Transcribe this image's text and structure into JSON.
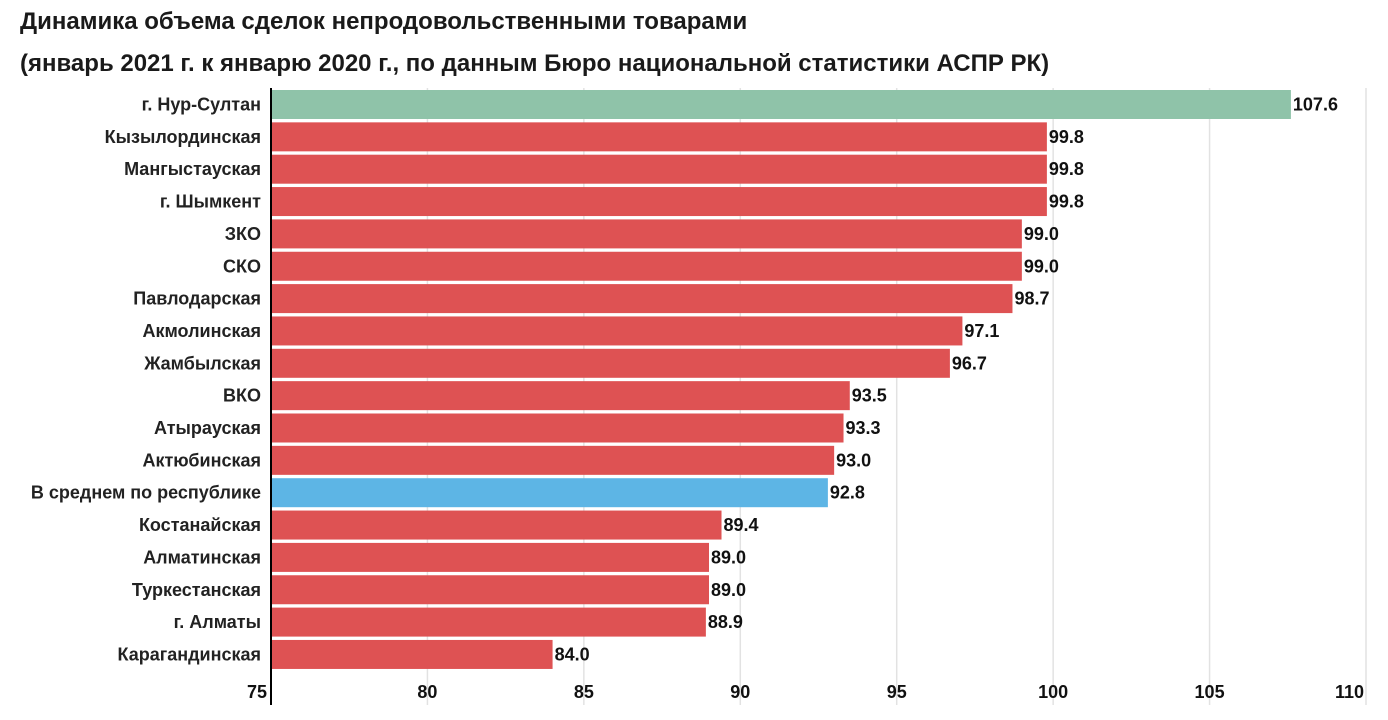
{
  "chart_data": {
    "type": "bar",
    "orientation": "horizontal",
    "title": "Динамика объема сделок непродовольственными товарами",
    "subtitle": "(январь 2021 г. к январю 2020 г., по данным Бюро национальной статистики АСПР РК)",
    "xlabel": "",
    "ylabel": "",
    "xlim": [
      75,
      110
    ],
    "ticks": [
      "75",
      "80",
      "85",
      "90",
      "95",
      "100",
      "105",
      "110"
    ],
    "tick_values": [
      75,
      80,
      85,
      90,
      95,
      100,
      105,
      110
    ],
    "grid": true,
    "categories": [
      "г. Нур-Султан",
      "Кызылординская",
      "Мангыстауская",
      "г. Шымкент",
      "ЗКО",
      "СКО",
      "Павлодарская",
      "Акмолинская",
      "Жамбылская",
      "ВКО",
      "Атырауская",
      "Актюбинская",
      "В среднем по республике",
      "Костанайская",
      "Алматинская",
      "Туркестанская",
      "г. Алматы",
      "Карагандинская"
    ],
    "values": [
      107.6,
      99.8,
      99.8,
      99.8,
      99.0,
      99.0,
      98.7,
      97.1,
      96.7,
      93.5,
      93.3,
      93.0,
      92.8,
      89.4,
      89.0,
      89.0,
      88.9,
      84.0
    ],
    "value_labels": [
      "107.6",
      "99.8",
      "99.8",
      "99.8",
      "99.0",
      "99.0",
      "98.7",
      "97.1",
      "96.7",
      "93.5",
      "93.3",
      "93.0",
      "92.8",
      "89.4",
      "89.0",
      "89.0",
      "88.9",
      "84.0"
    ],
    "colors": {
      "above_100": "#8fc3a9",
      "below_100": "#de5253",
      "average": "#5db5e5",
      "grid": "#e2e2e2",
      "axis": "#000000"
    },
    "bar_colors": [
      "#8fc3a9",
      "#de5253",
      "#de5253",
      "#de5253",
      "#de5253",
      "#de5253",
      "#de5253",
      "#de5253",
      "#de5253",
      "#de5253",
      "#de5253",
      "#de5253",
      "#5db5e5",
      "#de5253",
      "#de5253",
      "#de5253",
      "#de5253",
      "#de5253"
    ]
  }
}
